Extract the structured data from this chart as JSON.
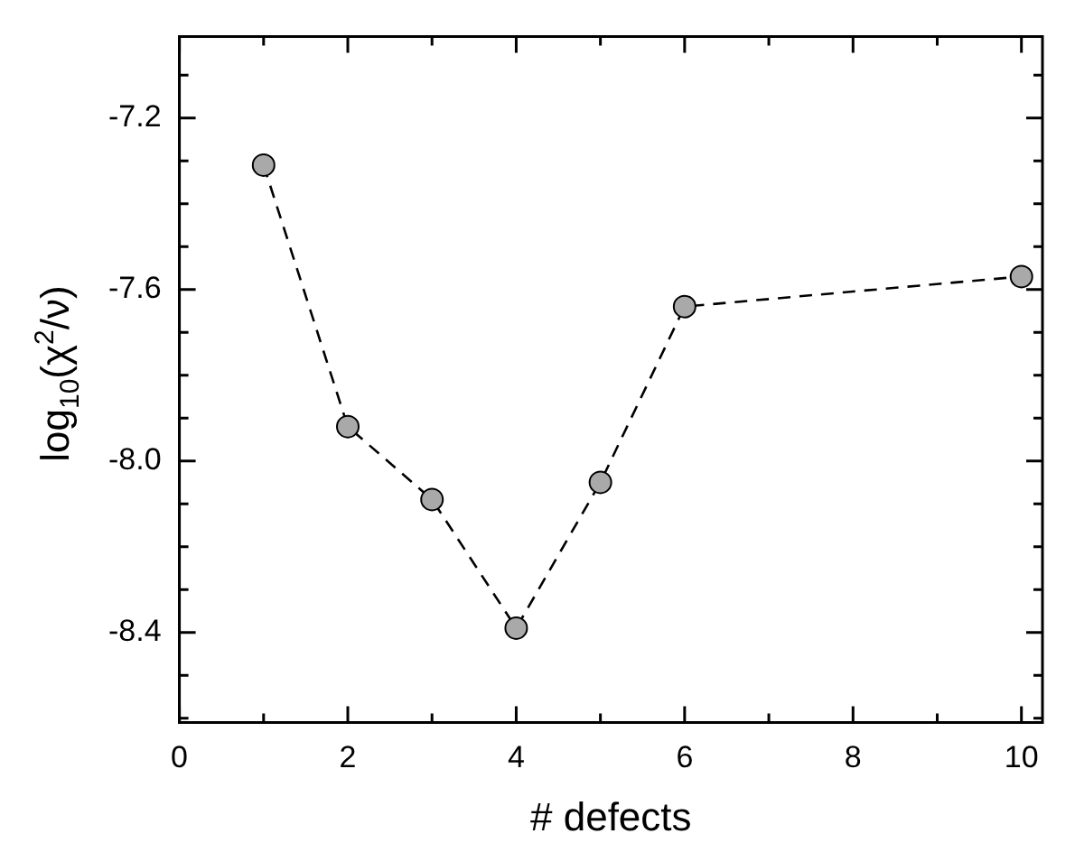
{
  "chart_data": {
    "type": "line",
    "xlabel": "# defects",
    "ylabel": "log$_{10}$(χ$^{2}$/ν)",
    "x": [
      1,
      2,
      3,
      4,
      5,
      6,
      10
    ],
    "series": [
      {
        "color": "#a9a9a9",
        "values": [
          -7.31,
          -7.92,
          -8.09,
          -8.39,
          -8.05,
          -7.64,
          -7.57
        ]
      }
    ],
    "marker": "circle",
    "line_style": "dashed",
    "grid": false,
    "legend": false,
    "xlim": [
      0,
      10.25
    ],
    "xticks": [
      0,
      {
        "value": 1,
        "label": null
      },
      2,
      {
        "value": 3,
        "label": null
      },
      4,
      {
        "value": 5,
        "label": null
      },
      6,
      {
        "value": 7,
        "label": null
      },
      8,
      {
        "value": 9,
        "label": null
      },
      10
    ],
    "ylim": [
      -8.61,
      -7.01
    ],
    "yticks": [
      {
        "value": -8.6,
        "label": null
      },
      {
        "value": -8.5,
        "label": null
      },
      "-8.4",
      {
        "value": -8.3,
        "label": null
      },
      {
        "value": -8.2,
        "label": null
      },
      {
        "value": -8.1,
        "label": null
      },
      {
        "value": -8.0,
        "label": "-8.0"
      },
      {
        "value": -7.9,
        "label": null
      },
      {
        "value": -7.8,
        "label": null
      },
      {
        "value": -7.7,
        "label": null
      },
      {
        "value": -7.6,
        "label": "-7.6"
      },
      {
        "value": -7.5,
        "label": null
      },
      {
        "value": -7.4,
        "label": null
      },
      {
        "value": -7.3,
        "label": null
      },
      {
        "value": -7.2,
        "label": "-7.2"
      },
      {
        "value": -7.1,
        "label": null
      }
    ]
  }
}
